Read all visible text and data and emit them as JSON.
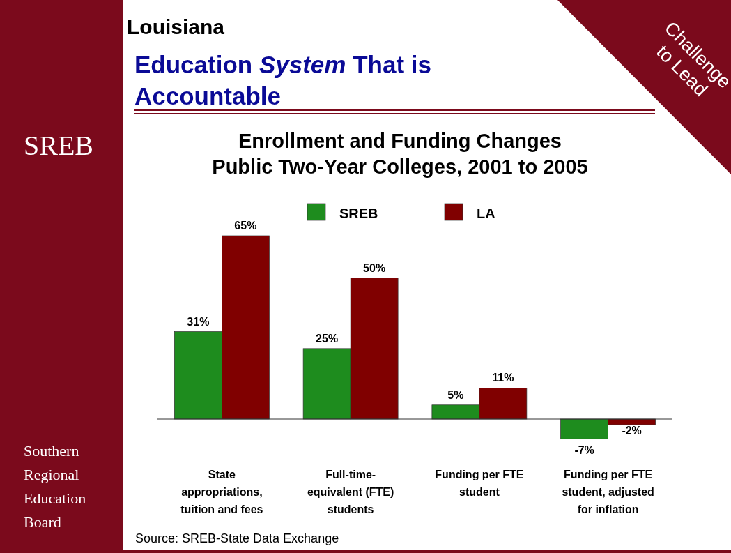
{
  "chart_data": {
    "type": "bar",
    "title": "Enrollment and Funding Changes\nPublic Two-Year Colleges, 2001 to 2005",
    "categories": [
      "State appropriations, tuition and fees",
      "Full-time-equivalent (FTE) students",
      "Funding per FTE student",
      "Funding per FTE student, adjusted for inflation"
    ],
    "series": [
      {
        "name": "SREB",
        "color": "#1e8c1e",
        "values": [
          31,
          25,
          5,
          -7
        ],
        "value_labels": [
          "31%",
          "25%",
          "5%",
          "-7%"
        ]
      },
      {
        "name": "LA",
        "color": "#800000",
        "values": [
          65,
          50,
          11,
          -2
        ],
        "value_labels": [
          "65%",
          "50%",
          "11%",
          "-2%"
        ]
      }
    ],
    "legend": "top",
    "annotations": [
      "Louisiana",
      "Education System That is Accountable",
      "SREB",
      "Southern Regional Education Board",
      "Challenge to Lead",
      "Source: SREB-State Data Exchange"
    ]
  }
}
